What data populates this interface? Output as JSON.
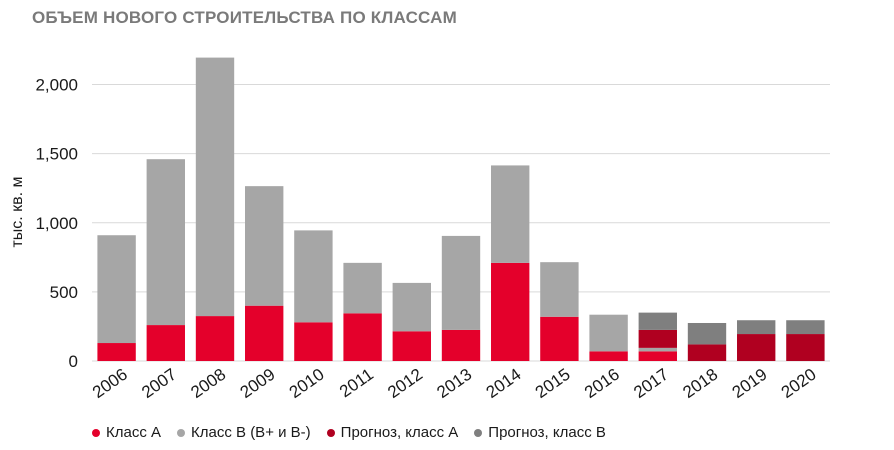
{
  "chart_data": {
    "type": "bar",
    "stacked": true,
    "title": "ОБЪЕМ НОВОГО СТРОИТЕЛЬСТВА ПО КЛАССАМ",
    "ylabel": "тыс. кв. м",
    "xlabel": "",
    "ylim": [
      0,
      2250
    ],
    "yticks": [
      0,
      500,
      1000,
      1500,
      2000
    ],
    "ytick_labels": [
      "0",
      "500",
      "1,000",
      "1,500",
      "2,000"
    ],
    "grid": true,
    "legend_position": "bottom",
    "categories": [
      "2006",
      "2007",
      "2008",
      "2009",
      "2010",
      "2011",
      "2012",
      "2013",
      "2014",
      "2015",
      "2016",
      "2017",
      "2018",
      "2019",
      "2020"
    ],
    "series": [
      {
        "name": "Класс А",
        "color": "#e4002b",
        "values": [
          130,
          260,
          325,
          400,
          280,
          345,
          215,
          225,
          710,
          320,
          70,
          70,
          0,
          0,
          0
        ]
      },
      {
        "name": "Класс B (B+ и B-)",
        "color": "#a6a6a6",
        "values": [
          780,
          1200,
          1870,
          865,
          665,
          365,
          350,
          680,
          705,
          395,
          265,
          25,
          0,
          0,
          0
        ]
      },
      {
        "name": "Прогноз, класс А",
        "color": "#b00020",
        "values": [
          0,
          0,
          0,
          0,
          0,
          0,
          0,
          0,
          0,
          0,
          0,
          130,
          120,
          195,
          195
        ]
      },
      {
        "name": "Прогноз, класс B",
        "color": "#7f7f7f",
        "values": [
          0,
          0,
          0,
          0,
          0,
          0,
          0,
          0,
          0,
          0,
          0,
          125,
          155,
          100,
          100
        ]
      }
    ]
  }
}
